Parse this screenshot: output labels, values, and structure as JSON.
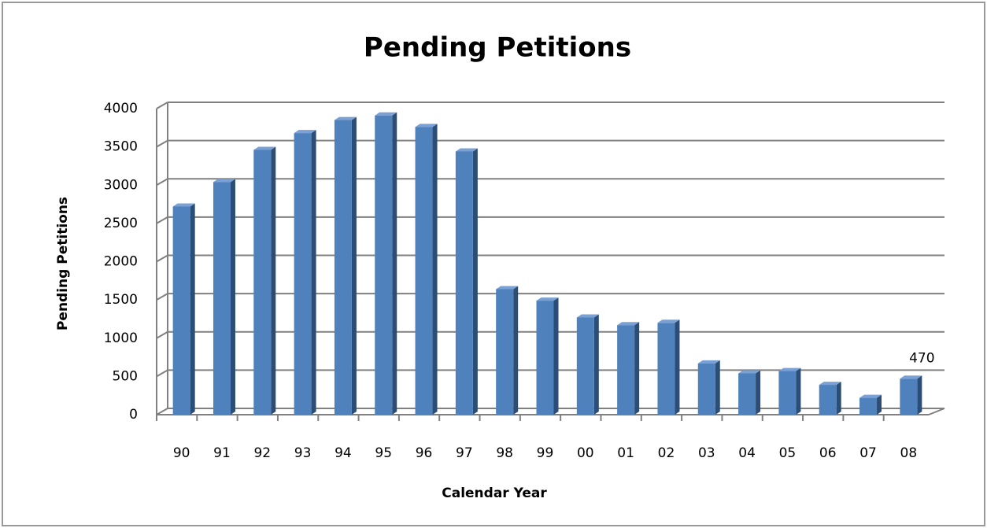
{
  "chart_data": {
    "type": "bar",
    "title": "Pending Petitions",
    "x_label": "Calendar Year",
    "y_label": "Pending Petitions",
    "categories": [
      "90",
      "91",
      "92",
      "93",
      "94",
      "95",
      "96",
      "97",
      "98",
      "99",
      "00",
      "01",
      "02",
      "03",
      "04",
      "05",
      "06",
      "07",
      "08"
    ],
    "values": [
      2720,
      3040,
      3460,
      3680,
      3850,
      3910,
      3760,
      3440,
      1640,
      1490,
      1270,
      1170,
      1200,
      670,
      540,
      570,
      390,
      220,
      470
    ],
    "value_labels": [
      null,
      null,
      null,
      null,
      null,
      null,
      null,
      null,
      null,
      null,
      null,
      null,
      null,
      null,
      null,
      null,
      null,
      null,
      "470"
    ],
    "color": "#4f81bd",
    "ylim": [
      0,
      4000
    ],
    "yticks": [
      0,
      500,
      1000,
      1500,
      2000,
      2500,
      3000,
      3500,
      4000
    ],
    "grid": true
  }
}
